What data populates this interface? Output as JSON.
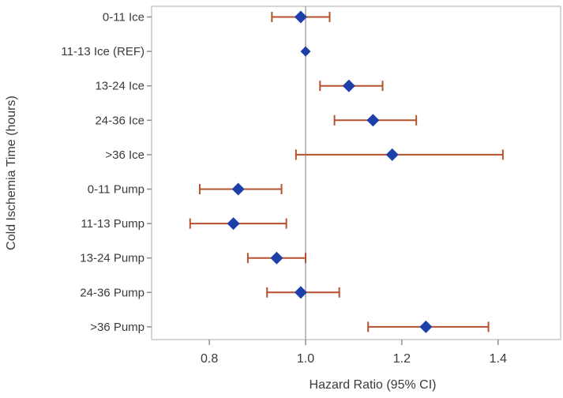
{
  "chart_data": {
    "type": "scatter",
    "subtype": "forest-plot",
    "title": "",
    "xlabel": "Hazard Ratio (95% CI)",
    "ylabel": "Cold Ischemia Time (hours)",
    "categories": [
      "0-11 Ice",
      "11-13 Ice (REF)",
      "13-24 Ice",
      "24-36 Ice",
      ">36 Ice",
      "0-11 Pump",
      "11-13 Pump",
      "13-24 Pump",
      "24-36 Pump",
      ">36 Pump"
    ],
    "series": [
      {
        "name": "Hazard Ratio",
        "values": [
          0.99,
          1.0,
          1.09,
          1.14,
          1.18,
          0.86,
          0.85,
          0.94,
          0.99,
          1.25
        ]
      },
      {
        "name": "Lower 95% CI",
        "values": [
          0.93,
          null,
          1.03,
          1.06,
          0.98,
          0.78,
          0.76,
          0.88,
          0.92,
          1.13
        ]
      },
      {
        "name": "Upper 95% CI",
        "values": [
          1.05,
          null,
          1.16,
          1.23,
          1.41,
          0.95,
          0.96,
          1.0,
          1.07,
          1.38
        ]
      }
    ],
    "reference_row": "11-13 Ice (REF)",
    "reference_line_x": 1.0,
    "x_ticks": [
      0.8,
      1.0,
      1.2,
      1.4
    ],
    "x_tick_labels": [
      "0.8",
      "1.0",
      "1.2",
      "1.4"
    ],
    "xlim": [
      0.68,
      1.53
    ],
    "grid": false,
    "legend": "none",
    "marker": "diamond",
    "colors": {
      "marker": "#1c3fa8",
      "error_bar": "#b5512d",
      "reference_line": "#a8a8a8",
      "frame": "#c8c8c8",
      "tick": "#8f8f8f",
      "text": "#3a3a3a"
    }
  }
}
